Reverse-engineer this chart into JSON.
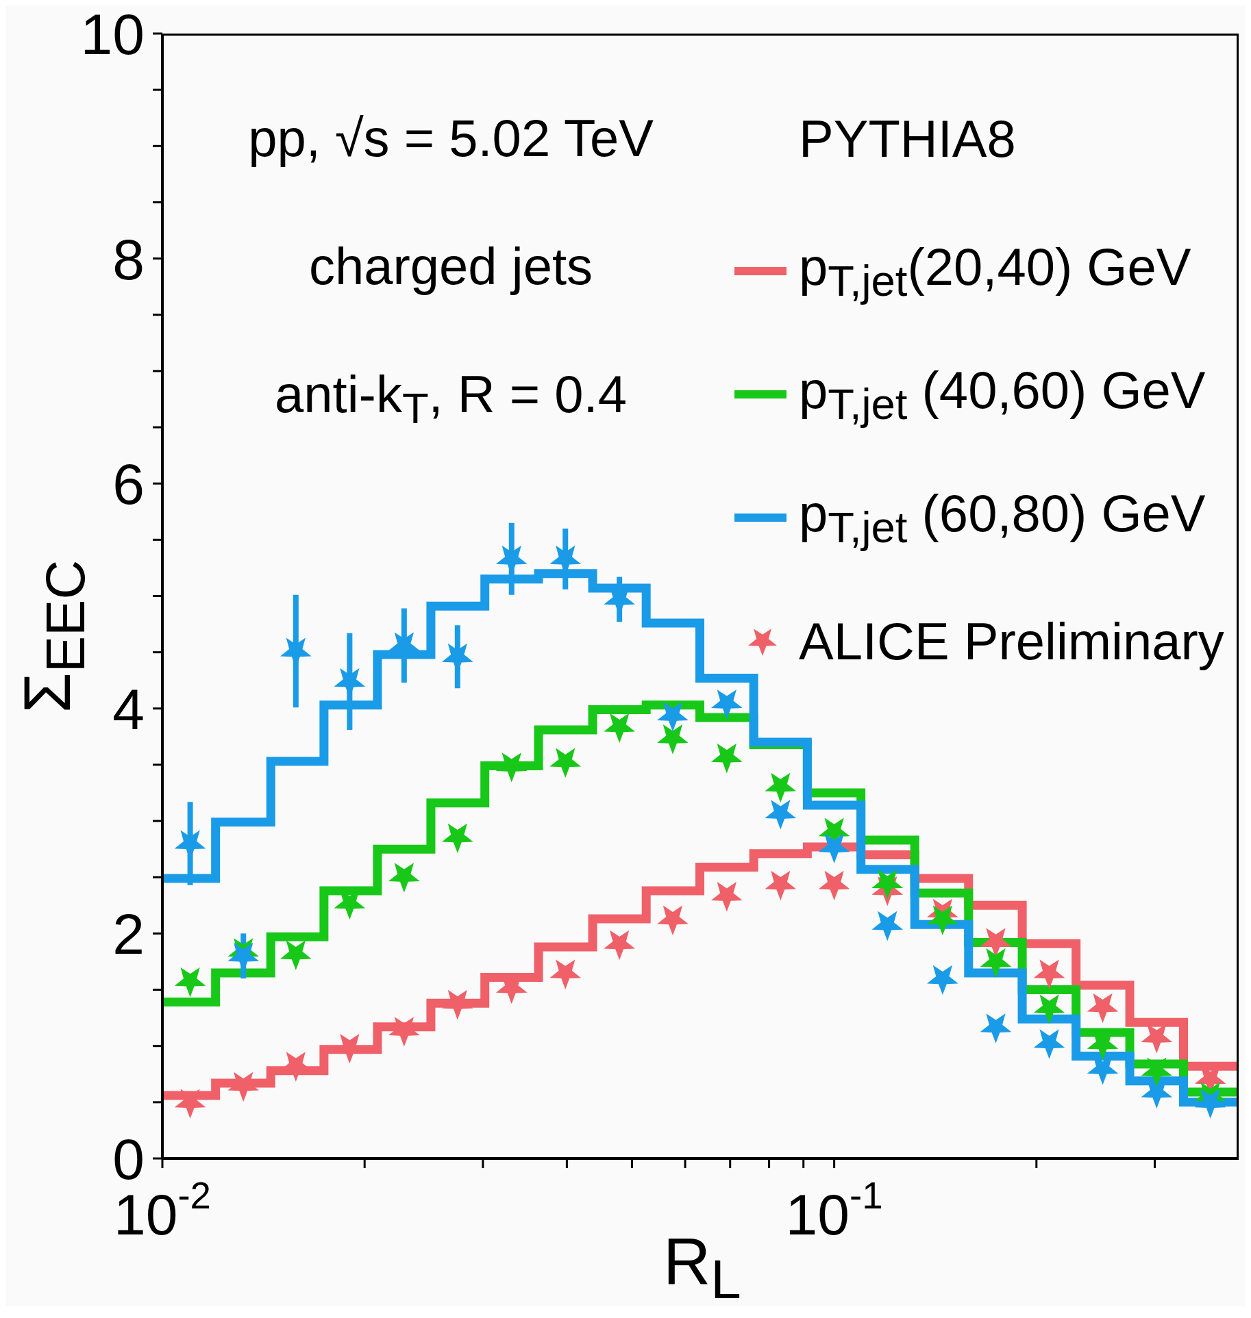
{
  "chart_data": {
    "type": "histogram",
    "xlabel": "R$_{L}$",
    "ylabel": "Σ$_{EEC}$",
    "legend_title": "PYTHIA8",
    "annotations": [
      "pp, √s = 5.02 TeV",
      "charged jets",
      "anti-k$_{T}$, R = 0.4"
    ],
    "log": "x",
    "xlim": [
      0.01,
      0.4
    ],
    "ylim": [
      0,
      10
    ],
    "xticks": [
      {
        "value": 0.01,
        "label": "10$^{-2}$"
      },
      {
        "value": 0.02,
        "label": null
      },
      {
        "value": 0.03,
        "label": null
      },
      {
        "value": 0.04,
        "label": null
      },
      {
        "value": 0.05,
        "label": null
      },
      {
        "value": 0.06,
        "label": null
      },
      {
        "value": 0.07,
        "label": null
      },
      {
        "value": 0.08,
        "label": null
      },
      {
        "value": 0.09,
        "label": null
      },
      {
        "value": 0.1,
        "label": "10$^{-1}$"
      },
      {
        "value": 0.2,
        "label": null
      },
      {
        "value": 0.3,
        "label": null
      }
    ],
    "yticks": [
      0,
      {
        "value": 0.5,
        "label": null
      },
      {
        "value": 1,
        "label": null
      },
      {
        "value": 1.5,
        "label": null
      },
      2,
      {
        "value": 2.5,
        "label": null
      },
      {
        "value": 3,
        "label": null
      },
      {
        "value": 3.5,
        "label": null
      },
      4,
      {
        "value": 4.5,
        "label": null
      },
      {
        "value": 5,
        "label": null
      },
      {
        "value": 5.5,
        "label": null
      },
      6,
      {
        "value": 6.5,
        "label": null
      },
      {
        "value": 7,
        "label": null
      },
      {
        "value": 7.5,
        "label": null
      },
      8,
      {
        "value": 8.5,
        "label": null
      },
      {
        "value": 9,
        "label": null
      },
      {
        "value": 9.5,
        "label": null
      },
      10
    ],
    "grid": false,
    "legend": "top right",
    "marker": "star",
    "bins": [
      0.01,
      0.012,
      0.0145,
      0.0174,
      0.0209,
      0.0251,
      0.0302,
      0.0363,
      0.0437,
      0.0525,
      0.0631,
      0.0759,
      0.0912,
      0.1096,
      0.1318,
      0.1585,
      0.1905,
      0.2291,
      0.2754,
      0.3311,
      0.4
    ],
    "series": [
      {
        "name": "p$_{T,jet}$(20,40) GeV",
        "color": "#f06068",
        "values": [
          0.56,
          0.67,
          0.78,
          0.97,
          1.17,
          1.38,
          1.61,
          1.88,
          2.13,
          2.38,
          2.59,
          2.71,
          2.77,
          2.7,
          2.49,
          2.25,
          1.91,
          1.54,
          1.21,
          0.82
        ]
      },
      {
        "name": "p$_{T,jet}$ (40,60) GeV",
        "color": "#18c818",
        "values": [
          1.39,
          1.65,
          1.97,
          2.38,
          2.75,
          3.16,
          3.49,
          3.81,
          3.99,
          4.03,
          3.92,
          3.68,
          3.25,
          2.83,
          2.36,
          1.92,
          1.5,
          1.12,
          0.84,
          0.59
        ]
      },
      {
        "name": "p$_{T,jet}$ (60,80) GeV",
        "color": "#1a9be8",
        "values": [
          2.49,
          2.99,
          3.53,
          4.03,
          4.48,
          4.91,
          5.15,
          5.2,
          5.07,
          4.76,
          4.27,
          3.7,
          3.14,
          2.57,
          2.08,
          1.65,
          1.24,
          0.91,
          0.69,
          0.5
        ]
      },
      {
        "type": "scatter",
        "name": "ALICE Preliminary",
        "color": "#f06068",
        "x": [
          0.011,
          0.0132,
          0.0158,
          0.019,
          0.0229,
          0.0275,
          0.0331,
          0.0398,
          0.0479,
          0.0575,
          0.0692,
          0.0832,
          0.1,
          0.12,
          0.145,
          0.174,
          0.209,
          0.251,
          0.302,
          0.363
        ],
        "values": [
          0.5,
          0.65,
          0.83,
          0.99,
          1.14,
          1.38,
          1.52,
          1.65,
          1.91,
          2.13,
          2.34,
          2.44,
          2.44,
          2.39,
          2.19,
          1.93,
          1.65,
          1.35,
          1.08,
          0.71
        ]
      },
      {
        "type": "scatter",
        "color": "#18c818",
        "x": [
          0.011,
          0.0132,
          0.0158,
          0.019,
          0.0229,
          0.0275,
          0.0331,
          0.0398,
          0.0479,
          0.0575,
          0.0692,
          0.0832,
          0.1,
          0.12,
          0.145,
          0.174,
          0.209,
          0.251,
          0.302,
          0.363
        ],
        "values": [
          1.58,
          1.84,
          1.82,
          2.27,
          2.51,
          2.86,
          3.49,
          3.53,
          3.84,
          3.74,
          3.57,
          3.31,
          2.91,
          2.45,
          2.13,
          1.75,
          1.34,
          1.02,
          0.78,
          0.56
        ]
      },
      {
        "type": "scatter",
        "color": "#1a9be8",
        "x": [
          0.011,
          0.0132,
          0.0158,
          0.019,
          0.0229,
          0.0275,
          0.0331,
          0.0398,
          0.0479,
          0.0575,
          0.0692,
          0.0832,
          0.1,
          0.12,
          0.145,
          0.174,
          0.209,
          0.251,
          0.302,
          0.363
        ],
        "values": [
          2.8,
          1.8,
          4.51,
          4.24,
          4.56,
          4.46,
          5.33,
          5.33,
          4.97,
          3.94,
          4.05,
          3.07,
          2.77,
          2.08,
          1.6,
          1.17,
          1.03,
          0.8,
          0.59,
          0.5
        ],
        "errors": [
          0.37,
          0.2,
          0.5,
          0.43,
          0.33,
          0.28,
          0.32,
          0.27,
          0.2,
          null,
          null,
          null,
          null,
          null,
          null,
          null,
          null,
          null,
          null,
          null
        ]
      }
    ]
  }
}
